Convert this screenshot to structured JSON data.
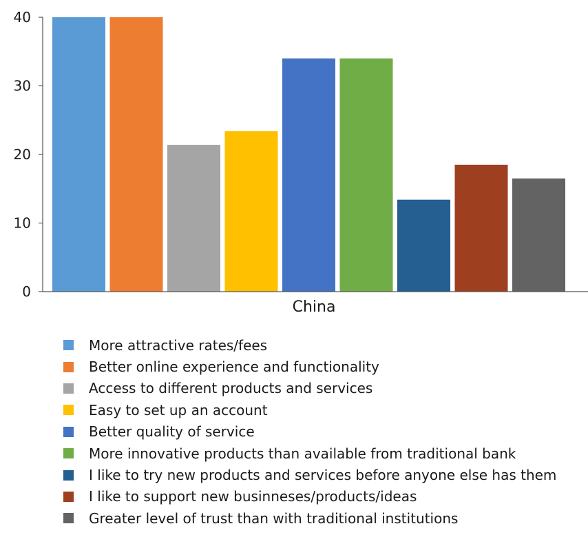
{
  "chart_data": {
    "type": "bar",
    "categories": [
      "China"
    ],
    "ylim": [
      0,
      40
    ],
    "yticks": [
      0,
      10,
      20,
      30,
      40
    ],
    "grid": false,
    "legend_position": "bottom",
    "series": [
      {
        "name": "More attractive rates/fees",
        "color": "#5b9bd5",
        "values": [
          40
        ]
      },
      {
        "name": "Better online experience and functionality",
        "color": "#ed7d31",
        "values": [
          40
        ]
      },
      {
        "name": "Access to different products and services",
        "color": "#a5a5a5",
        "values": [
          21.4
        ]
      },
      {
        "name": "Easy to set up an account",
        "color": "#ffc000",
        "values": [
          23.4
        ]
      },
      {
        "name": "Better quality of service",
        "color": "#4472c4",
        "values": [
          34
        ]
      },
      {
        "name": "More innovative products than available from traditional bank",
        "color": "#70ad47",
        "values": [
          34
        ]
      },
      {
        "name": "I like to try new products and services before anyone else has them",
        "color": "#255e91",
        "values": [
          13.4
        ]
      },
      {
        "name": "I like to support new businneses/products/ideas",
        "color": "#9e3f1f",
        "values": [
          18.5
        ]
      },
      {
        "name": "Greater level of trust than with traditional institutions",
        "color": "#636363",
        "values": [
          16.5
        ]
      }
    ]
  }
}
